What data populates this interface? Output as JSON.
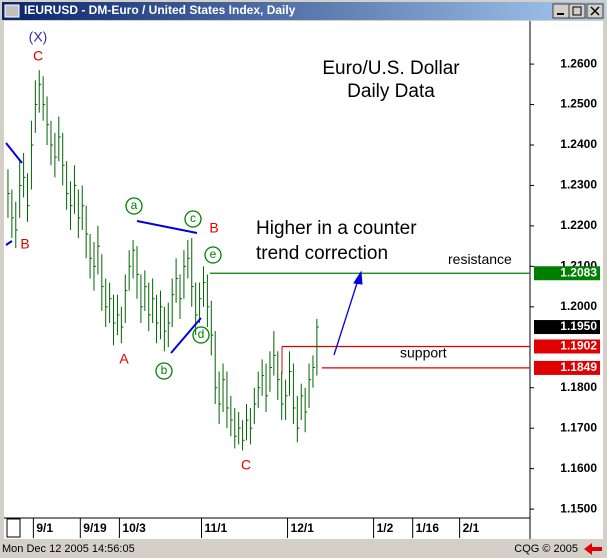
{
  "window": {
    "title": "IEURUSD - DM-Euro / United States Index, Daily"
  },
  "chart_data": {
    "type": "ohlc",
    "title": "Euro/U.S. Dollar",
    "subtitle": "Daily Data",
    "color": "#006400",
    "categories": [
      null,
      null,
      null,
      null,
      null,
      null,
      null,
      "9/1",
      null,
      null,
      null,
      null,
      null,
      null,
      null,
      null,
      null,
      null,
      null,
      "9/19",
      null,
      null,
      null,
      null,
      null,
      null,
      null,
      null,
      null,
      "10/3",
      null,
      null,
      null,
      null,
      null,
      null,
      null,
      null,
      null,
      null,
      null,
      null,
      null,
      null,
      null,
      null,
      null,
      null,
      null,
      null,
      "11/1",
      null,
      null,
      null,
      null,
      null,
      null,
      null,
      null,
      null,
      null,
      null,
      null,
      null,
      null,
      null,
      null,
      null,
      null,
      null,
      null,
      null,
      "12/1",
      null,
      null,
      null,
      null,
      null,
      null,
      null,
      null,
      null,
      null,
      null,
      null,
      null,
      null,
      null,
      null,
      null,
      null,
      null,
      null,
      null,
      "1/2",
      null,
      null,
      null,
      null,
      null,
      null,
      null,
      null,
      null,
      "1/16",
      null,
      null,
      null,
      null,
      null,
      null,
      null,
      null,
      null,
      null,
      null,
      "2/1",
      null,
      null,
      null,
      null,
      null,
      null,
      null,
      null,
      null,
      null,
      null,
      null,
      null,
      null,
      null,
      null,
      null
    ],
    "high": [
      1.234,
      1.229,
      1.226,
      1.236,
      1.238,
      1.233,
      1.246,
      1.256,
      1.2585,
      1.257,
      1.252,
      1.246,
      1.243,
      1.247,
      1.243,
      1.236,
      1.231,
      1.235,
      1.229,
      1.23,
      1.225,
      1.218,
      1.216,
      1.22,
      1.213,
      1.207,
      1.206,
      1.203,
      1.203,
      1.2,
      1.208,
      1.214,
      1.2165,
      1.215,
      1.208,
      1.209,
      1.206,
      1.207,
      1.203,
      1.204,
      1.2,
      1.201,
      1.207,
      1.212,
      1.208,
      1.214,
      1.2165,
      1.217,
      1.206,
      1.206,
      1.21,
      1.208,
      1.2015,
      1.194,
      1.184,
      1.186,
      1.184,
      1.178,
      1.175,
      1.174,
      1.172,
      1.176,
      1.175,
      1.18,
      1.184,
      1.187,
      1.186,
      1.189,
      1.194,
      1.189,
      1.184,
      1.182,
      1.189,
      1.186,
      1.178,
      1.181,
      1.18,
      1.186,
      1.188,
      1.197,
      null,
      null,
      null,
      null,
      null,
      null,
      null,
      null,
      null,
      null,
      null,
      null,
      null,
      null,
      null,
      null,
      null,
      null,
      null,
      null,
      null,
      null,
      null,
      null,
      null,
      null,
      null,
      null,
      null,
      null,
      null,
      null,
      null,
      null,
      null,
      null,
      null,
      null,
      null,
      null,
      null,
      null,
      null,
      null,
      null,
      null,
      null,
      null,
      null,
      null,
      null,
      null,
      null,
      null
    ],
    "low": [
      1.222,
      1.217,
      1.2145,
      1.222,
      1.227,
      1.221,
      1.229,
      1.243,
      1.248,
      1.246,
      1.24,
      1.235,
      1.232,
      1.236,
      1.23,
      1.224,
      1.219,
      1.223,
      1.217,
      1.219,
      1.212,
      1.207,
      1.204,
      1.208,
      1.199,
      1.195,
      1.196,
      1.1905,
      1.193,
      1.191,
      1.196,
      1.204,
      1.207,
      1.202,
      1.196,
      1.199,
      1.194,
      1.196,
      1.191,
      1.192,
      1.189,
      1.19,
      1.195,
      1.201,
      1.197,
      1.202,
      1.207,
      1.2,
      1.193,
      1.196,
      1.2,
      1.195,
      1.188,
      1.176,
      1.171,
      1.174,
      1.17,
      1.168,
      1.165,
      1.166,
      1.1645,
      1.167,
      1.166,
      1.171,
      1.175,
      1.178,
      1.174,
      1.179,
      1.183,
      1.177,
      1.172,
      1.172,
      1.178,
      1.171,
      1.1665,
      1.172,
      1.169,
      1.175,
      1.18,
      1.183,
      null,
      null,
      null,
      null,
      null,
      null,
      null,
      null,
      null,
      null,
      null,
      null,
      null,
      null,
      null,
      null,
      null,
      null,
      null,
      null,
      null,
      null,
      null,
      null,
      null,
      null,
      null,
      null,
      null,
      null,
      null,
      null,
      null,
      null,
      null,
      null,
      null,
      null,
      null,
      null,
      null,
      null,
      null,
      null,
      null,
      null,
      null,
      null,
      null,
      null,
      null,
      null,
      null,
      null
    ],
    "close": [
      1.228,
      1.222,
      1.219,
      1.23,
      1.232,
      1.225,
      1.24,
      1.25,
      1.255,
      1.25,
      1.245,
      1.24,
      1.237,
      1.242,
      1.235,
      1.228,
      1.225,
      1.23,
      1.222,
      1.225,
      1.218,
      1.212,
      1.21,
      1.215,
      1.205,
      1.2,
      1.202,
      1.196,
      1.198,
      1.195,
      1.204,
      1.21,
      1.214,
      1.208,
      1.2,
      1.205,
      1.198,
      1.202,
      1.196,
      1.2,
      1.194,
      1.196,
      1.203,
      1.207,
      1.202,
      1.21,
      1.212,
      1.205,
      1.198,
      1.202,
      1.206,
      1.2,
      1.193,
      1.18,
      1.176,
      1.182,
      1.175,
      1.172,
      1.168,
      1.17,
      1.167,
      1.172,
      1.17,
      1.176,
      1.18,
      1.183,
      1.178,
      1.185,
      1.188,
      1.182,
      1.176,
      1.178,
      1.184,
      1.175,
      1.17,
      1.178,
      1.174,
      1.182,
      1.185,
      1.195,
      null,
      null,
      null,
      null,
      null,
      null,
      null,
      null,
      null,
      null,
      null,
      null,
      null,
      null,
      null,
      null,
      null,
      null,
      null,
      null,
      null,
      null,
      null,
      null,
      null,
      null,
      null,
      null,
      null,
      null,
      null,
      null,
      null,
      null,
      null,
      null,
      null,
      null,
      null,
      null,
      null,
      null,
      null,
      null,
      null,
      null,
      null,
      null,
      null,
      null,
      null,
      null,
      null,
      null
    ],
    "ylim": [
      1.1478,
      1.2709
    ],
    "yticks": [
      {
        "value": 1.15,
        "label": "1.1500"
      },
      {
        "value": 1.16,
        "label": "1.1600"
      },
      {
        "value": 1.17,
        "label": "1.1700"
      },
      {
        "value": 1.18,
        "label": "1.1800"
      },
      {
        "value": 1.2,
        "label": "1.2000"
      },
      {
        "value": 1.21,
        "label": "1.2100"
      },
      {
        "value": 1.22,
        "label": "1.2200"
      },
      {
        "value": 1.23,
        "label": "1.2300"
      },
      {
        "value": 1.24,
        "label": "1.2400"
      },
      {
        "value": 1.25,
        "label": "1.2500"
      },
      {
        "value": 1.26,
        "label": "1.2600"
      }
    ],
    "last": {
      "value": 1.195,
      "label": "1.1950",
      "color": "#000000"
    },
    "levels": [
      {
        "name": "resistance",
        "value": 1.2083,
        "color": "#008000"
      },
      {
        "value": 1.1902,
        "color": "#e00000"
      },
      {
        "value": 1.1849,
        "color": "#e00000"
      }
    ],
    "annotations": [
      "(X)",
      "C",
      "B",
      "A",
      "C",
      "B",
      "a",
      "b",
      "c",
      "d",
      "e",
      "Higher in a counter",
      "trend correction",
      "support"
    ]
  },
  "status": {
    "datetime": "Mon Dec 12 2005 14:56:05",
    "copyright": "CQG © 2005"
  }
}
